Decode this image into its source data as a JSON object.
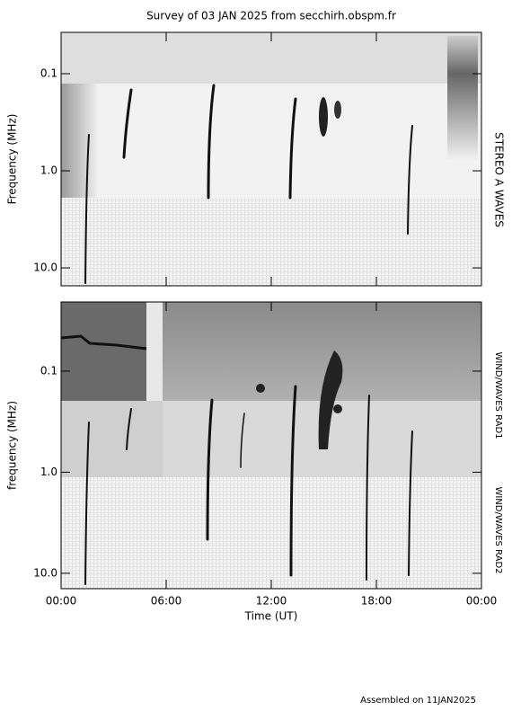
{
  "chart_data": {
    "type": "spectrogram",
    "title": "Survey of 03 JAN 2025 from secchirh.obspm.fr",
    "xlabel": "Time (UT)",
    "xlim": [
      0,
      24
    ],
    "xticks": [
      {
        "value": 0,
        "label": "00:00"
      },
      {
        "value": 6,
        "label": "06:00"
      },
      {
        "value": 12,
        "label": "12:00"
      },
      {
        "value": 18,
        "label": "18:00"
      },
      {
        "value": 24,
        "label": "00:00"
      }
    ],
    "footer": "Assembled on 11JAN2025",
    "yscale": "log",
    "panels": [
      {
        "ylabel": "Frequency (MHz)",
        "labels": [
          "STEREO A WAVES"
        ],
        "ylim": [
          0.0375,
          15.3
        ],
        "yticks": [
          0.1,
          {
            "value": 1,
            "label": "1.0"
          },
          {
            "value": 10,
            "label": "10.0"
          }
        ]
      },
      {
        "ylabel": "frequency (MHz)",
        "labels": [
          "WIND/WAVES RAD1",
          "WIND/WAVES RAD2"
        ],
        "ylim": [
          0.0207,
          14.2
        ],
        "yticks": [
          0.1,
          {
            "value": 1,
            "label": "1.0"
          },
          {
            "value": 10,
            "label": "10.0"
          }
        ]
      }
    ]
  }
}
